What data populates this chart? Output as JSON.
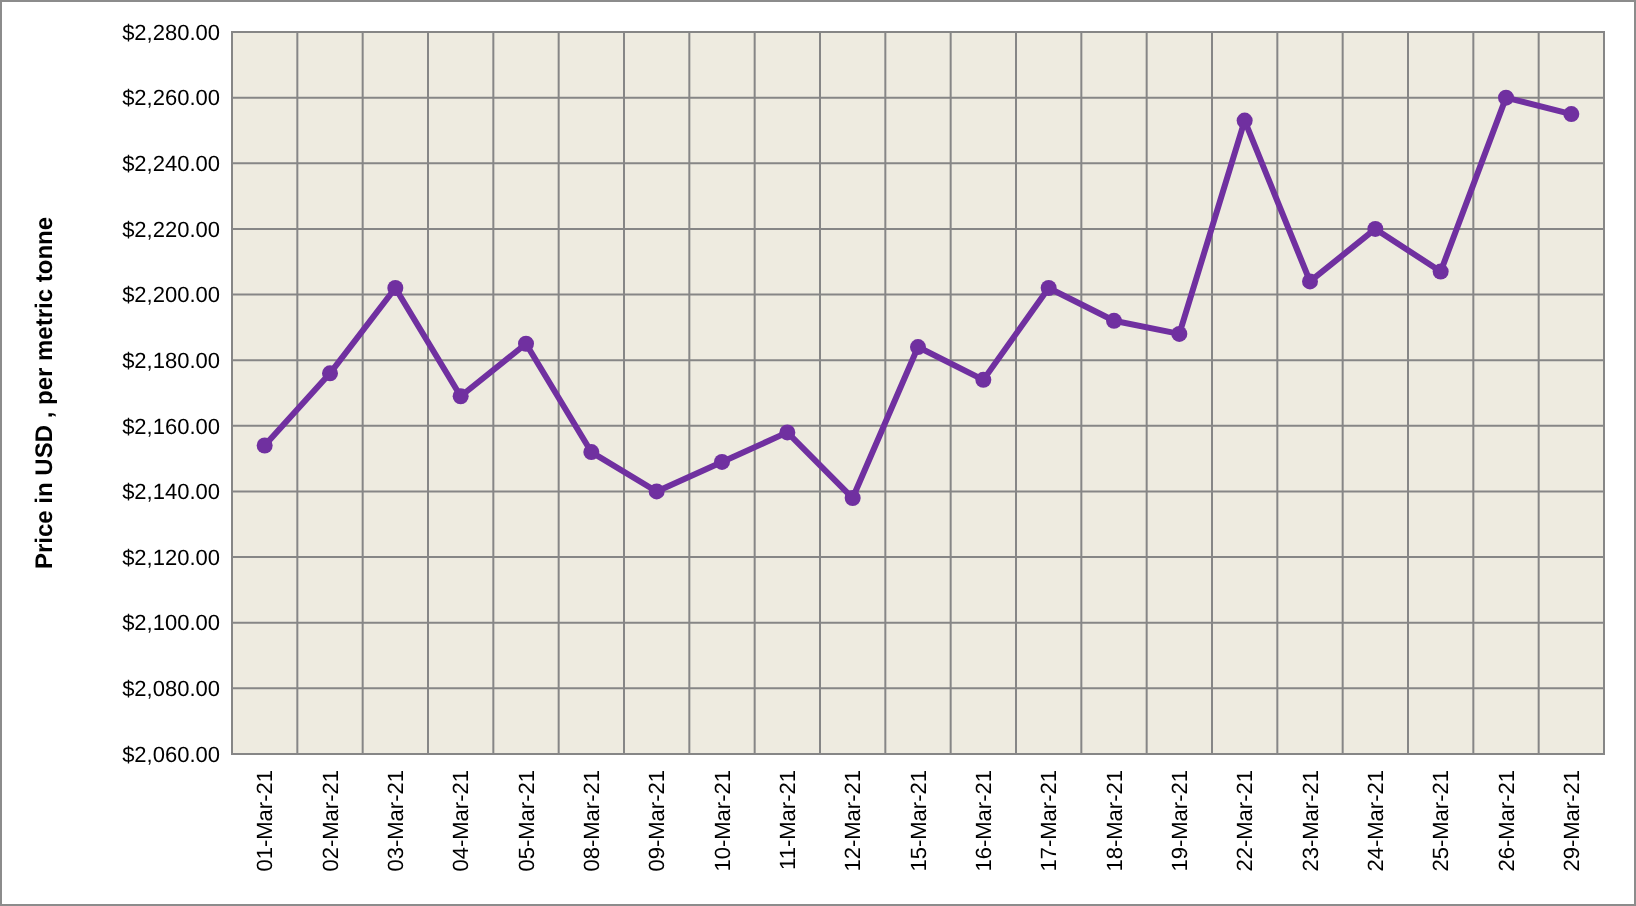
{
  "chart_data": {
    "type": "line",
    "ylabel": "Price in USD , per metric tonne",
    "categories": [
      "01-Mar-21",
      "02-Mar-21",
      "03-Mar-21",
      "04-Mar-21",
      "05-Mar-21",
      "08-Mar-21",
      "09-Mar-21",
      "10-Mar-21",
      "11-Mar-21",
      "12-Mar-21",
      "15-Mar-21",
      "16-Mar-21",
      "17-Mar-21",
      "18-Mar-21",
      "19-Mar-21",
      "22-Mar-21",
      "23-Mar-21",
      "24-Mar-21",
      "25-Mar-21",
      "26-Mar-21",
      "29-Mar-21"
    ],
    "series": [
      {
        "color": "#7030a0",
        "values": [
          2154,
          2176,
          2202,
          2169,
          2185,
          2152,
          2140,
          2149,
          2158,
          2138,
          2184,
          2174,
          2202,
          2192,
          2188,
          2253,
          2204,
          2220,
          2207,
          2260,
          2255
        ]
      }
    ],
    "ylim": [
      2060,
      2280
    ],
    "yticks": [
      {
        "value": 2060,
        "label": "$2,060.00"
      },
      {
        "value": 2080,
        "label": "$2,080.00"
      },
      {
        "value": 2100,
        "label": "$2,100.00"
      },
      {
        "value": 2120,
        "label": "$2,120.00"
      },
      {
        "value": 2140,
        "label": "$2,140.00"
      },
      {
        "value": 2160,
        "label": "$2,160.00"
      },
      {
        "value": 2180,
        "label": "$2,180.00"
      },
      {
        "value": 2200,
        "label": "$2,200.00"
      },
      {
        "value": 2220,
        "label": "$2,220.00"
      },
      {
        "value": 2240,
        "label": "$2,240.00"
      },
      {
        "value": 2260,
        "label": "$2,260.00"
      },
      {
        "value": 2280,
        "label": "$2,280.00"
      }
    ],
    "grid": true,
    "marker": "circle",
    "line_style": "solid"
  }
}
